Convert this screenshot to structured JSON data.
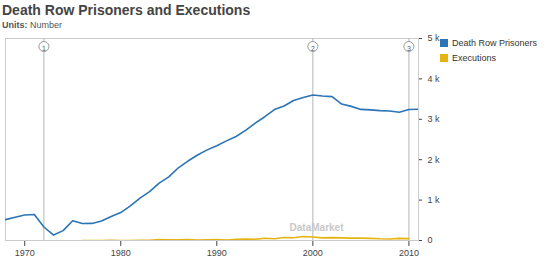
{
  "chart_data": {
    "type": "line",
    "title": "Death Row Prisoners and Executions",
    "subtitle": "Units: Number",
    "x": [
      1968,
      1969,
      1970,
      1971,
      1972,
      1973,
      1974,
      1975,
      1976,
      1977,
      1978,
      1979,
      1980,
      1981,
      1982,
      1983,
      1984,
      1985,
      1986,
      1987,
      1988,
      1989,
      1990,
      1991,
      1992,
      1993,
      1994,
      1995,
      1996,
      1997,
      1998,
      1999,
      2000,
      2001,
      2002,
      2003,
      2004,
      2005,
      2006,
      2007,
      2008,
      2009,
      2010,
      2011
    ],
    "series": [
      {
        "name": "Death Row Prisoners",
        "color": "#2b74b6",
        "values": [
          517,
          575,
          631,
          642,
          334,
          134,
          244,
          488,
          420,
          423,
          482,
          593,
          691,
          856,
          1050,
          1209,
          1420,
          1575,
          1800,
          1967,
          2117,
          2243,
          2346,
          2466,
          2575,
          2727,
          2905,
          3064,
          3242,
          3328,
          3465,
          3540,
          3601,
          3577,
          3562,
          3377,
          3320,
          3245,
          3233,
          3215,
          3207,
          3173,
          3242,
          3251
        ]
      },
      {
        "name": "Executions",
        "color": "#e6b412",
        "values": [
          null,
          null,
          null,
          null,
          null,
          null,
          null,
          null,
          0,
          1,
          0,
          2,
          0,
          1,
          2,
          5,
          21,
          18,
          18,
          25,
          11,
          16,
          23,
          14,
          31,
          38,
          31,
          56,
          45,
          74,
          68,
          98,
          85,
          66,
          71,
          65,
          59,
          60,
          53,
          42,
          37,
          52,
          46,
          null
        ]
      }
    ],
    "xlim": [
      1968,
      2011
    ],
    "xticks": [
      1970,
      1980,
      1990,
      2000,
      2010
    ],
    "ylim": [
      0,
      5000
    ],
    "yticks": [
      0,
      {
        "value": 1000,
        "label": "1 k"
      },
      {
        "value": 2000,
        "label": "2 k"
      },
      {
        "value": 3000,
        "label": "3 k"
      },
      {
        "value": 4000,
        "label": "4 k"
      },
      {
        "value": 5000,
        "label": "5 k"
      }
    ],
    "annotations": [
      {
        "x": 1972,
        "label": "1"
      },
      {
        "x": 2000,
        "label": "2"
      },
      {
        "x": 2010,
        "label": "3"
      }
    ],
    "watermark": "DataMarket",
    "grid": false,
    "legend": "right"
  }
}
